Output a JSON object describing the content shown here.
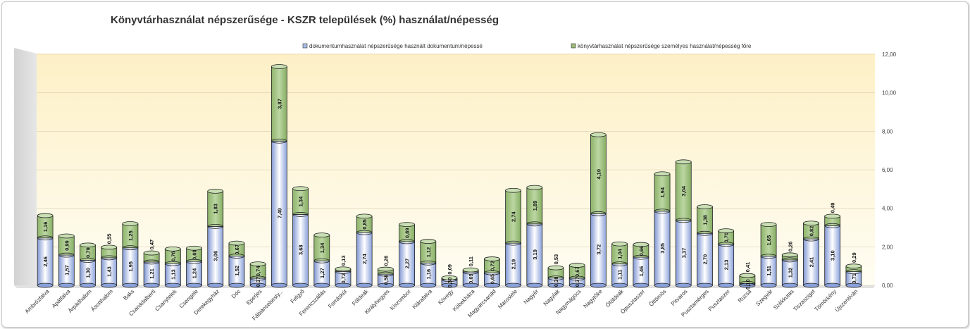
{
  "chart_data": {
    "type": "bar",
    "stacked": true,
    "title": "Könyvtárhasználat népszerűsége - KSZR települések (%) használat/népesség",
    "categories": [
      "Ambrózfalva",
      "Apátfalva",
      "Árpádhalom",
      "Ásotthalom",
      "Baks",
      "Csanádalberti",
      "Csanytelek",
      "Csengele",
      "Derekegyház",
      "Dóc",
      "Eperjes",
      "Fábiánsebesty...",
      "Felgyő",
      "Ferencszállás",
      "Forráskút",
      "Földeák",
      "Királyhegyes",
      "Kiszombor",
      "Klárafalva",
      "Kövegy",
      "Kübekháza",
      "Magyarcsanád",
      "Maroslele",
      "Nagyér",
      "Nagylak",
      "Nagymágocs",
      "Nagytőke",
      "Óföldeák",
      "Ópusztaszer",
      "Öttömös",
      "Pitvaros",
      "Pusztamérges",
      "Pusztaszer",
      "Ruzsa",
      "Szegvár",
      "Székkutas",
      "Tiszasziget",
      "Tömörkény",
      "Újszentiván"
    ],
    "series": [
      {
        "name": "dokumentumhasználat népszerűsége használt dokumentum/népessé",
        "color": "#a9bde6",
        "values": [
          2.46,
          1.57,
          1.3,
          1.43,
          1.95,
          1.21,
          1.13,
          1.24,
          3.06,
          1.52,
          0.37,
          7.49,
          3.68,
          1.27,
          0.72,
          2.74,
          0.58,
          2.27,
          1.16,
          0.3,
          0.69,
          0.65,
          2.19,
          3.19,
          0.38,
          0.37,
          3.72,
          1.11,
          1.46,
          3.85,
          3.37,
          2.7,
          2.13,
          0.1,
          1.51,
          1.32,
          2.41,
          3.1,
          0.71
        ],
        "labels": [
          "2,46",
          "1,57",
          "1,30",
          "1,43",
          "1,95",
          "1,21",
          "1,13",
          "1,24",
          "3,06",
          "1,52",
          "0,37",
          "7,49",
          "3,68",
          "1,27",
          "0,72",
          "2,74",
          "0,58",
          "2,27",
          "1,16",
          "0,30",
          "0,69",
          "0,65",
          "2,19",
          "3,19",
          "0,38",
          "0,37",
          "3,72",
          "1,11",
          "1,46",
          "3,85",
          "3,37",
          "2,70",
          "2,13",
          "0,10",
          "1,51",
          "1,32",
          "2,41",
          "3,10",
          "0,71"
        ]
      },
      {
        "name": "könyvtárhasználat népszerűsége személyes használat/népesség főre",
        "color": "#9cba78",
        "values": [
          1.16,
          0.99,
          0.79,
          0.55,
          1.25,
          0.47,
          0.76,
          0.69,
          1.83,
          0.67,
          0.74,
          3.87,
          1.34,
          1.34,
          0.13,
          0.85,
          0.26,
          0.89,
          1.12,
          0.09,
          0.11,
          0.72,
          2.74,
          1.89,
          0.53,
          0.67,
          4.1,
          1.04,
          0.66,
          1.94,
          3.04,
          1.38,
          0.7,
          0.41,
          1.65,
          0.26,
          0.82,
          0.49,
          0.29
        ],
        "labels": [
          "1,16",
          "0,99",
          "0,79",
          "0,55",
          "1,25",
          "0,47",
          "0,76",
          "0,69",
          "1,83",
          "0,67",
          "0,74",
          "3,87",
          "1,34",
          "1,34",
          "0,13",
          "0,85",
          "0,26",
          "0,89",
          "1,12",
          "0,09",
          "0,11",
          "0,72",
          "2,74",
          "1,89",
          "0,53",
          "0,67",
          "4,10",
          "1,04",
          "0,66",
          "1,94",
          "3,04",
          "1,38",
          "0,70",
          "0,41",
          "1,65",
          "0,26",
          "0,82",
          "0,49",
          "0,29"
        ]
      }
    ],
    "ylim": [
      0,
      12
    ],
    "yticks": [
      "0,00",
      "2,00",
      "4,00",
      "6,00",
      "8,00",
      "10,00",
      "12,00"
    ],
    "grid": true,
    "legend_position": "top"
  }
}
